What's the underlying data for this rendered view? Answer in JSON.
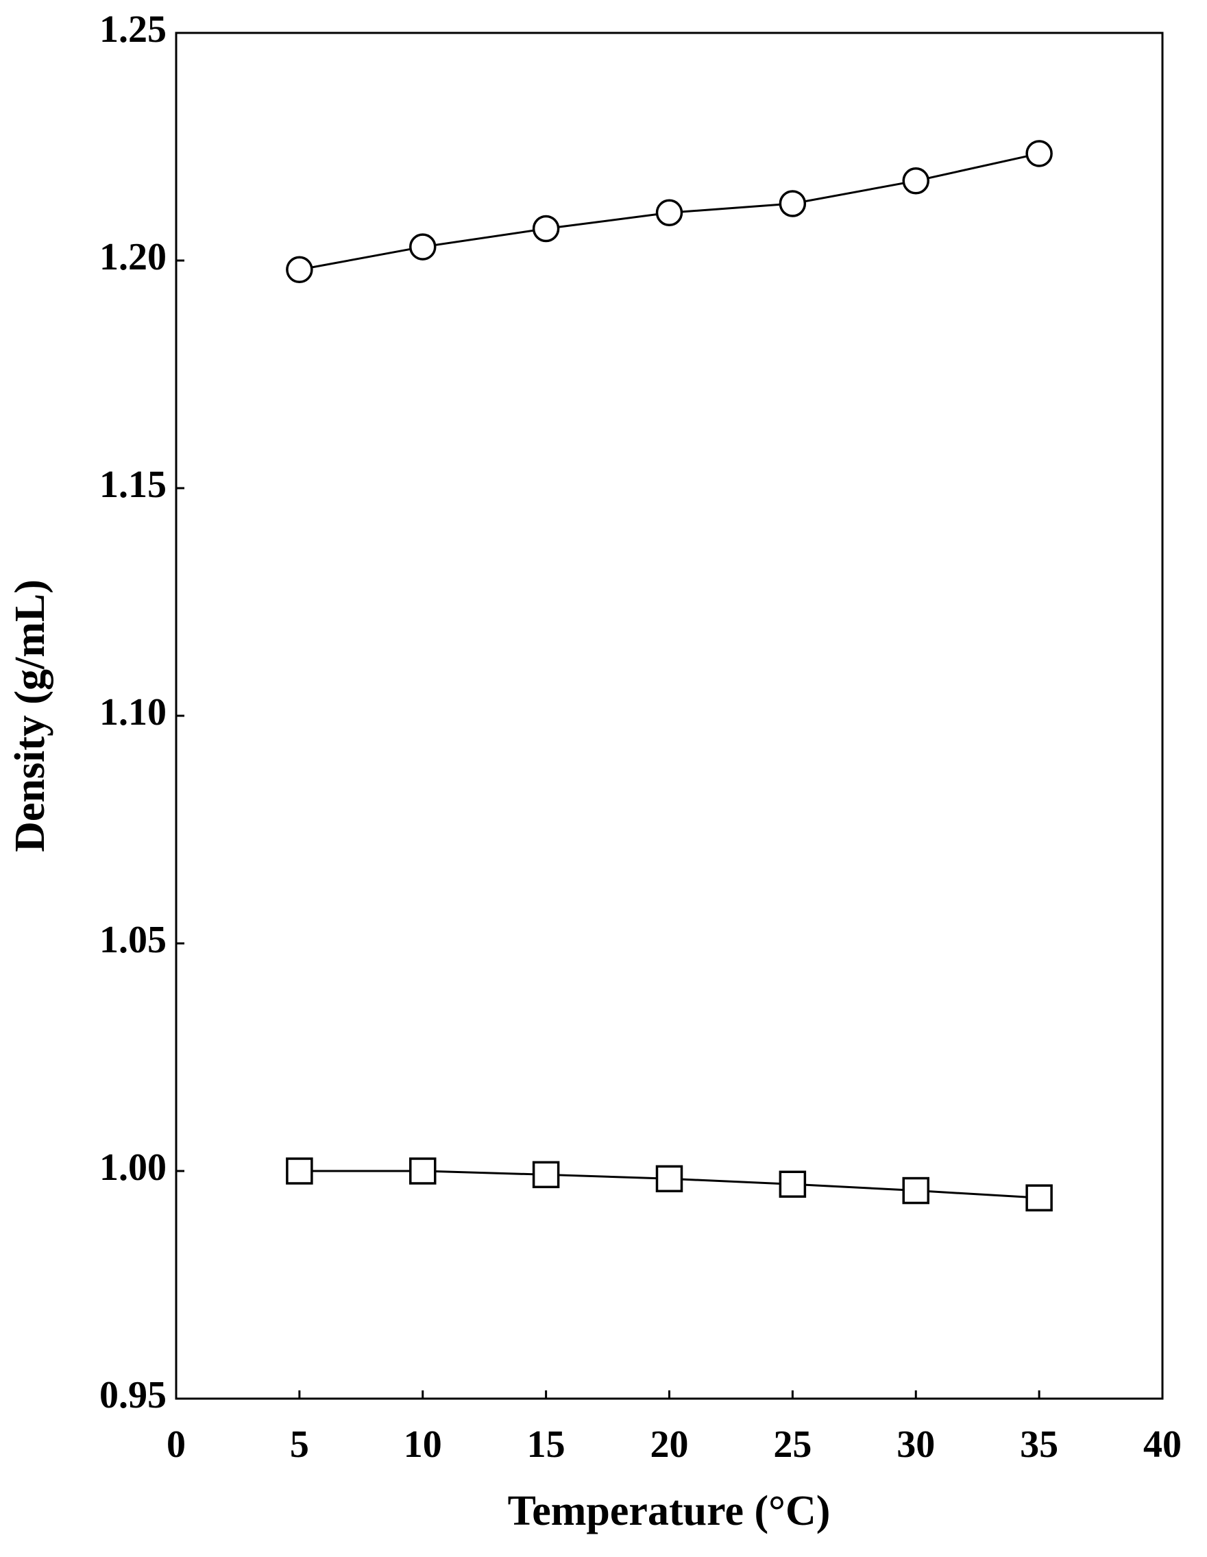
{
  "chart_data": {
    "type": "line",
    "x_label": "Temperature (°C)",
    "y_label": "Density (g/mL)",
    "x": [
      5,
      10,
      15,
      20,
      25,
      30,
      35
    ],
    "series": [
      {
        "color": "#000000",
        "marker": "circle",
        "values": [
          1.198,
          1.203,
          1.207,
          1.2105,
          1.2125,
          1.2175,
          1.2235
        ]
      },
      {
        "color": "#000000",
        "marker": "square",
        "values": [
          1.0,
          1.0,
          0.9992,
          0.9983,
          0.9971,
          0.9957,
          0.9941
        ]
      }
    ],
    "xlim": [
      0,
      40
    ],
    "xticks": [
      0,
      5,
      10,
      15,
      20,
      25,
      30,
      35,
      40
    ],
    "ylim": [
      0.95,
      1.25
    ],
    "yticks": [
      {
        "value": 0.95,
        "label": "0.95"
      },
      {
        "value": 1.0,
        "label": "1.00"
      },
      {
        "value": 1.05,
        "label": "1.05"
      },
      {
        "value": 1.1,
        "label": "1.10"
      },
      {
        "value": 1.15,
        "label": "1.15"
      },
      {
        "value": 1.2,
        "label": "1.20"
      },
      {
        "value": 1.25,
        "label": "1.25"
      }
    ]
  }
}
